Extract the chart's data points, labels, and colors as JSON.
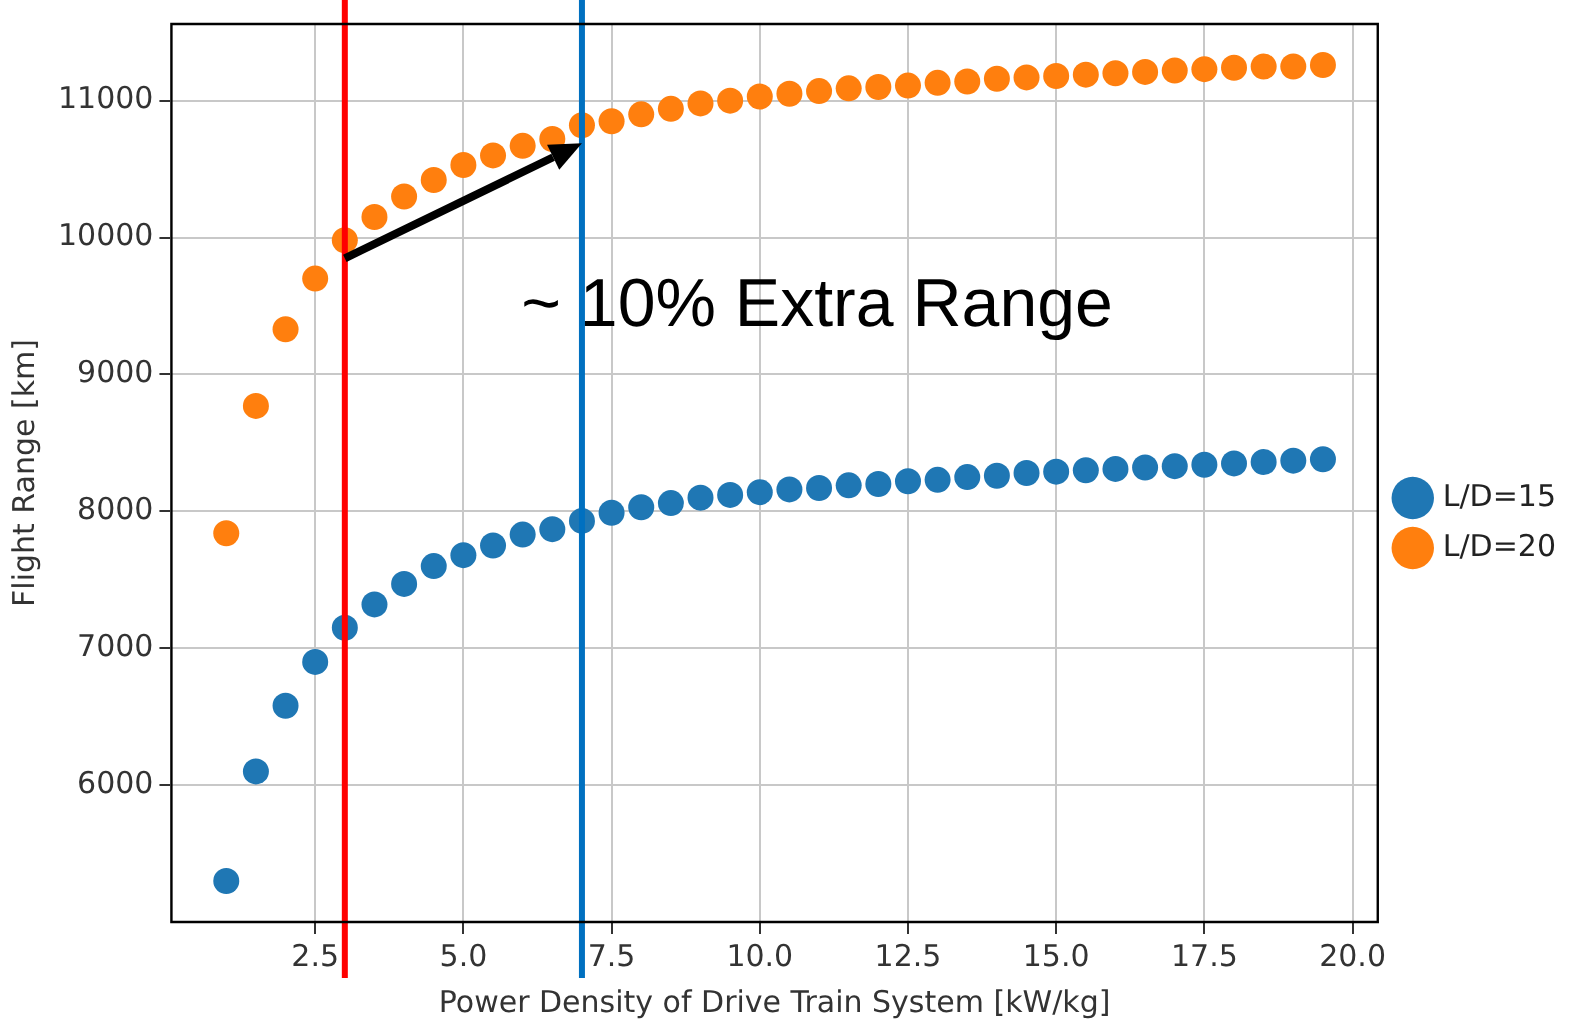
{
  "chart_data": {
    "type": "scatter",
    "xlabel": "Power Density of Drive Train System [kW/kg]",
    "ylabel": "Flight Range [km]",
    "x": [
      1,
      1.5,
      2,
      2.5,
      3,
      3.5,
      4,
      4.5,
      5,
      5.5,
      6,
      6.5,
      7,
      7.5,
      8,
      8.5,
      9,
      9.5,
      10,
      10.5,
      11,
      11.5,
      12,
      12.5,
      13,
      13.5,
      14,
      14.5,
      15,
      15.5,
      16,
      16.5,
      17,
      17.5,
      18,
      18.5,
      19,
      19.5
    ],
    "series": [
      {
        "name": "L/D=15",
        "color": "#1f77b4",
        "values": [
          5300,
          6100,
          6580,
          6900,
          7150,
          7320,
          7470,
          7600,
          7680,
          7750,
          7830,
          7870,
          7930,
          7990,
          8030,
          8060,
          8100,
          8120,
          8140,
          8160,
          8170,
          8190,
          8200,
          8220,
          8230,
          8250,
          8260,
          8280,
          8290,
          8300,
          8310,
          8320,
          8330,
          8340,
          8350,
          8360,
          8370,
          8380
        ]
      },
      {
        "name": "L/D=20",
        "color": "#ff7f0e",
        "values": [
          7840,
          8770,
          9330,
          9700,
          9980,
          10150,
          10300,
          10420,
          10530,
          10600,
          10670,
          10720,
          10820,
          10850,
          10900,
          10940,
          10980,
          11000,
          11030,
          11050,
          11070,
          11090,
          11100,
          11110,
          11130,
          11140,
          11160,
          11170,
          11180,
          11190,
          11200,
          11210,
          11220,
          11230,
          11240,
          11250,
          11250,
          11260
        ]
      }
    ],
    "xlim": [
      0.075,
      20.425
    ],
    "xticks": [
      {
        "value": 2.5,
        "label": "2.5"
      },
      {
        "value": 5,
        "label": "5.0"
      },
      {
        "value": 7.5,
        "label": "7.5"
      },
      {
        "value": 10,
        "label": "10.0"
      },
      {
        "value": 12.5,
        "label": "12.5"
      },
      {
        "value": 15,
        "label": "15.0"
      },
      {
        "value": 17.5,
        "label": "17.5"
      },
      {
        "value": 20,
        "label": "20.0"
      }
    ],
    "ylim": [
      5000,
      11560
    ],
    "yticks": [
      6000,
      7000,
      8000,
      9000,
      10000,
      11000
    ],
    "ref_lines": [
      {
        "axis": "x",
        "value": 3,
        "color": "#ff0000"
      },
      {
        "axis": "x",
        "value": 7,
        "color": "#0070c0"
      }
    ],
    "annotations": [
      "~ 10% Extra Range"
    ],
    "grid": true,
    "legend": "right",
    "marker": "circle"
  }
}
